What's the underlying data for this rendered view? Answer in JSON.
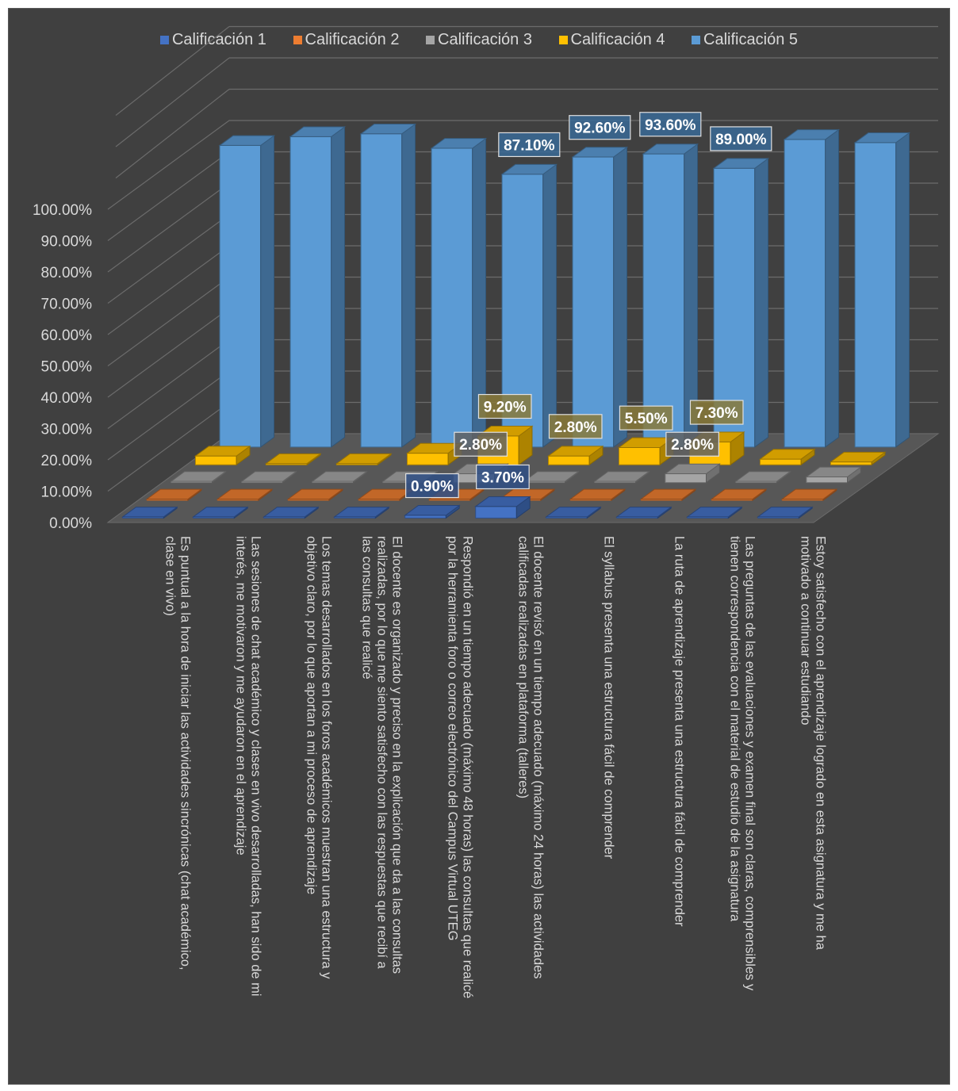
{
  "chart_data": {
    "type": "bar",
    "title": "",
    "xlabel": "",
    "ylabel": "",
    "ylim": [
      0,
      1
    ],
    "y_ticks": [
      "0.00%",
      "10.00%",
      "20.00%",
      "30.00%",
      "40.00%",
      "50.00%",
      "60.00%",
      "70.00%",
      "80.00%",
      "90.00%",
      "100.00%"
    ],
    "legend_position": "top",
    "grid": true,
    "categories": [
      "Es puntual a la hora de iniciar las actividades sincrónicas (chat académico, clase en vivo)",
      "Las sesiones de chat académico y clases en vivo desarrolladas, han sido de mi interés, me motivaron y me ayudaron en el aprendizaje",
      "Los temas desarrollados en los foros académicos muestran una estructura y objetivo claro, por lo que aportan a mi proceso de aprendizaje",
      "El docente es organizado y preciso en la explicación que da a las consultas realizadas, por lo que me siento satisfecho con las respuestas que recibí a las consultas que realicé",
      "Respondió en un tiempo adecuado (máximo 48 horas) las consultas que realicé por la herramienta foro o correo electrónico del Campus Virtual UTEG",
      "El docente revisó en un tiempo adecuado (máximo 24 horas) las actividades calificadas realizadas en plataforma (talleres)",
      "El syllabus presenta una estructura fácil de comprender",
      "La ruta de aprendizaje presenta una estructura fácil de comprender",
      "Las preguntas de las evaluaciones y examen final son claras, comprensibles y tienen correspondencia con el material de estudio de la asignatura",
      "Estoy satisfecho con el aprendizaje logrado en esta asignatura y me ha motivado a continuar estudiando"
    ],
    "series": [
      {
        "name": "Calificación 1",
        "color": "#4472c4",
        "values": [
          0.0,
          0.0,
          0.0,
          0.0,
          0.009,
          0.037,
          0.0,
          0.0,
          0.0,
          0.0
        ],
        "data_labels": [
          "",
          "",
          "",
          "",
          "0.90%",
          "3.70%",
          "",
          "",
          "",
          ""
        ]
      },
      {
        "name": "Calificación 2",
        "color": "#ed7d31",
        "values": [
          0.0,
          0.0,
          0.0,
          0.0,
          0.0,
          0.0,
          0.0,
          0.0,
          0.0,
          0.0
        ],
        "data_labels": [
          "",
          "",
          "",
          "",
          "",
          "",
          "",
          "",
          "",
          ""
        ]
      },
      {
        "name": "Calificación 3",
        "color": "#a5a5a5",
        "values": [
          0.0,
          0.0,
          0.0,
          0.0,
          0.028,
          0.0,
          0.0,
          0.028,
          0.0,
          0.018
        ],
        "data_labels": [
          "",
          "",
          "",
          "",
          "2.80%",
          "",
          "",
          "2.80%",
          "",
          ""
        ]
      },
      {
        "name": "Calificación 4",
        "color": "#ffc000",
        "values": [
          0.028,
          0.0,
          0.0,
          0.037,
          0.092,
          0.028,
          0.055,
          0.073,
          0.018,
          0.009
        ],
        "data_labels": [
          "",
          "",
          "",
          "",
          "9.20%",
          "2.80%",
          "5.50%",
          "7.30%",
          "",
          ""
        ]
      },
      {
        "name": "Calificación 5",
        "color": "#5b9bd5",
        "values": [
          0.963,
          0.991,
          1.0,
          0.954,
          0.871,
          0.926,
          0.936,
          0.89,
          0.982,
          0.972
        ],
        "data_labels": [
          "",
          "",
          "",
          "",
          "87.10%",
          "92.60%",
          "93.60%",
          "89.00%",
          "",
          ""
        ]
      }
    ]
  }
}
